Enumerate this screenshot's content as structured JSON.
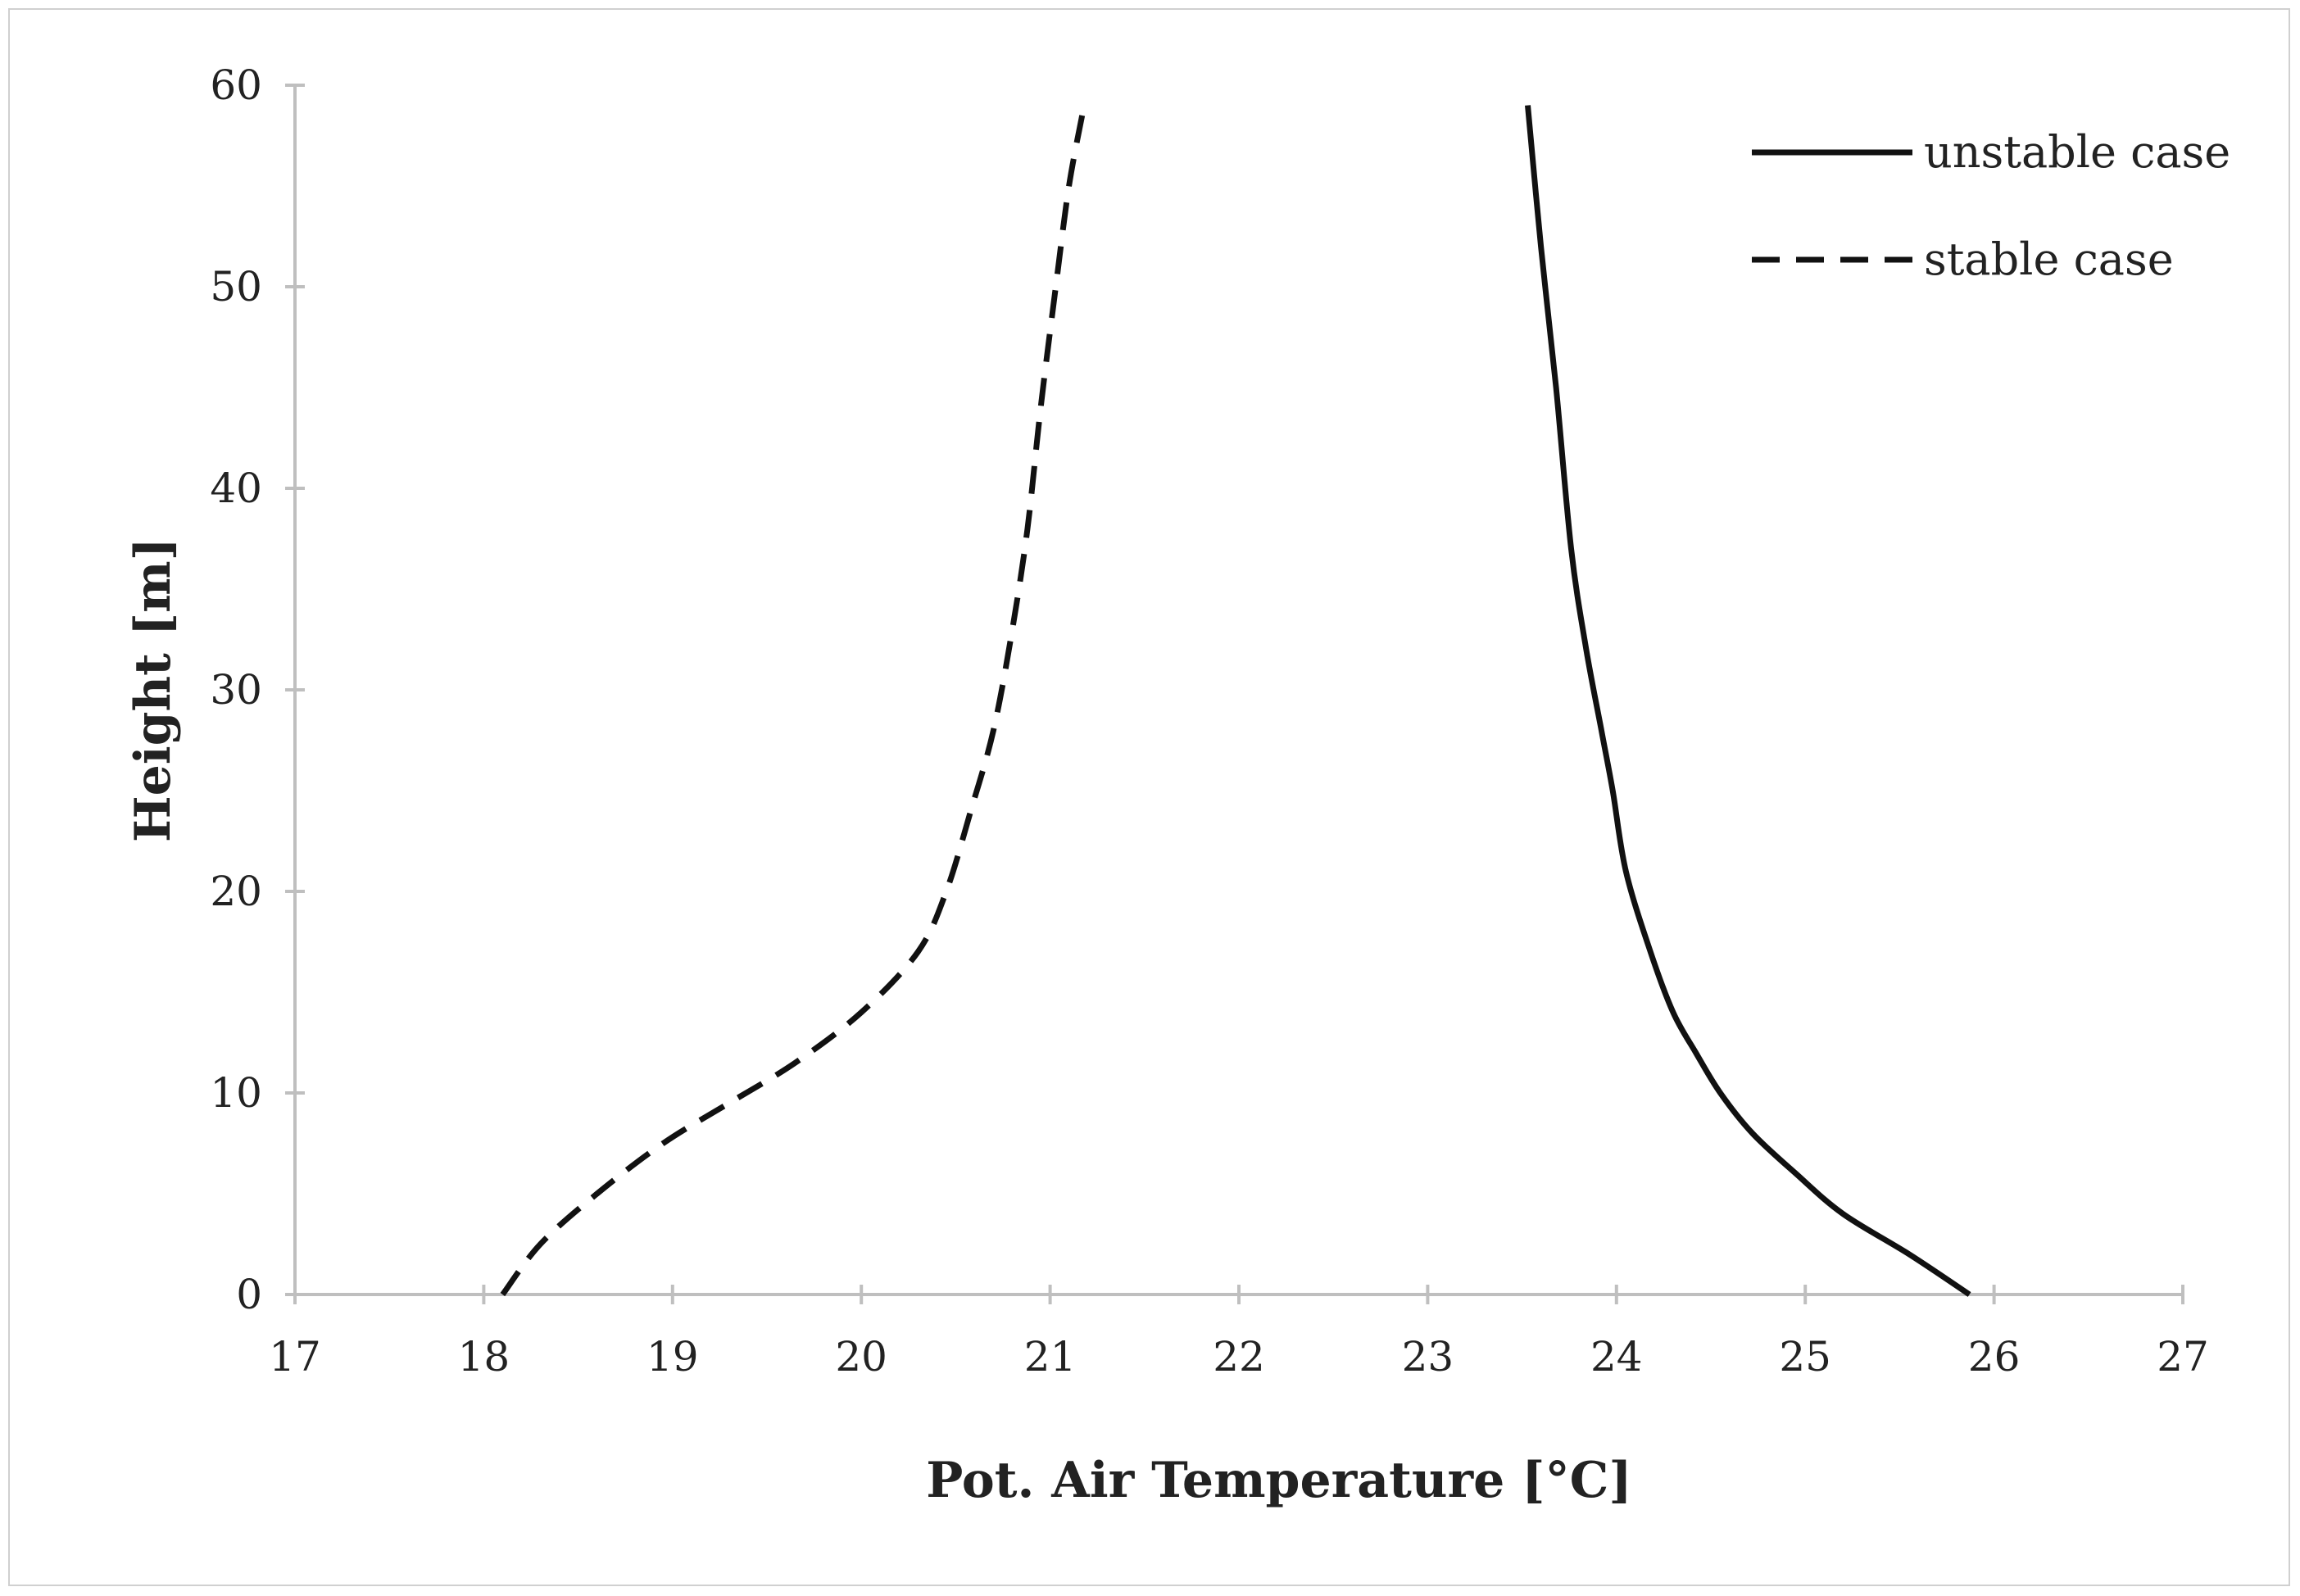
{
  "chart_data": {
    "type": "line",
    "title": "",
    "xlabel": "Pot. Air Temperature [°C]",
    "ylabel": "Height [m]",
    "xlim": [
      17,
      27
    ],
    "ylim": [
      0,
      60
    ],
    "xticks": [
      "17",
      "18",
      "19",
      "20",
      "21",
      "22",
      "23",
      "24",
      "25",
      "26",
      "27"
    ],
    "yticks": [
      "0",
      "10",
      "20",
      "30",
      "40",
      "50",
      "60"
    ],
    "grid": false,
    "legend_position": "top-right",
    "colors": {
      "axis": "#bfbfbf",
      "series": "#111111",
      "text": "#222222"
    },
    "series": [
      {
        "name": "unstable case",
        "style": "solid",
        "x": [
          25.87,
          25.55,
          25.2,
          24.95,
          24.72,
          24.55,
          24.42,
          24.3,
          24.18,
          24.05,
          23.98,
          23.92,
          23.84,
          23.76,
          23.68,
          23.6,
          23.53
        ],
        "y": [
          0,
          2,
          4,
          6,
          8,
          10,
          12,
          14,
          17,
          21,
          25,
          28,
          32,
          37,
          45,
          52,
          59
        ]
      },
      {
        "name": "stable case",
        "style": "dashed",
        "x": [
          18.1,
          18.3,
          18.6,
          18.95,
          19.3,
          19.65,
          20.0,
          20.3,
          20.45,
          20.58,
          20.7,
          20.8,
          20.88,
          20.95,
          21.03,
          21.1,
          21.18
        ],
        "y": [
          0,
          2.5,
          5,
          7.5,
          9.5,
          11.5,
          14,
          17,
          20,
          24,
          28,
          33,
          38,
          44,
          50,
          55,
          59
        ]
      }
    ]
  }
}
